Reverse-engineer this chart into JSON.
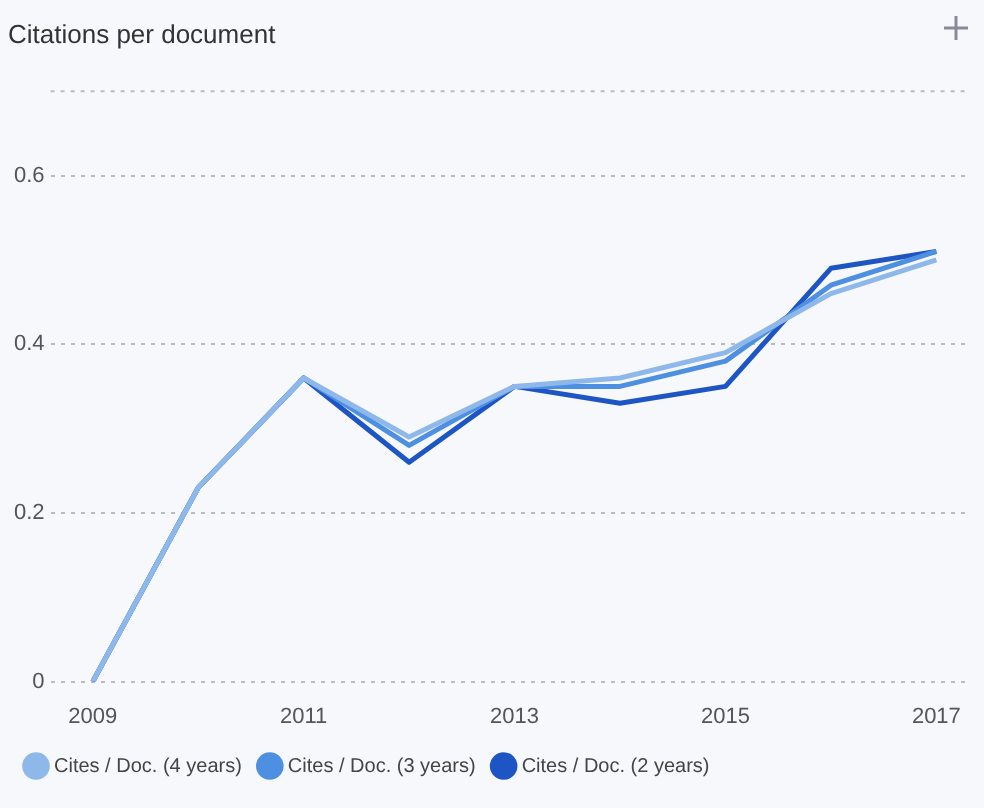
{
  "chart_data": {
    "type": "line",
    "title": "Citations per document",
    "x": [
      2009,
      2010,
      2011,
      2012,
      2013,
      2014,
      2015,
      2016,
      2017
    ],
    "series": [
      {
        "name": "Cites / Doc. (4 years)",
        "color": "#8fb8ea",
        "values": [
          0,
          0.23,
          0.36,
          0.29,
          0.35,
          0.36,
          0.39,
          0.46,
          0.5
        ]
      },
      {
        "name": "Cites / Doc. (3 years)",
        "color": "#4d8fe0",
        "values": [
          0,
          0.23,
          0.36,
          0.28,
          0.35,
          0.35,
          0.38,
          0.47,
          0.51
        ]
      },
      {
        "name": "Cites / Doc. (2 years)",
        "color": "#1e55c4",
        "values": [
          0,
          0.23,
          0.36,
          0.26,
          0.35,
          0.33,
          0.35,
          0.49,
          0.51
        ]
      }
    ],
    "xlim": [
      2008.6,
      2017.3
    ],
    "xticks": [
      2009,
      2011,
      2013,
      2015,
      2017
    ],
    "ylim": [
      0,
      0.7
    ],
    "yticks": [
      0,
      0.2,
      0.4,
      0.6
    ],
    "grid": "y",
    "legend": "bottom left",
    "marker": "none"
  }
}
